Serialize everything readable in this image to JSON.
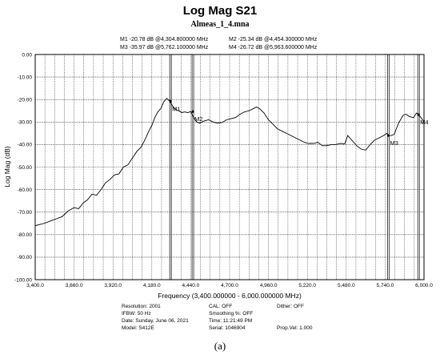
{
  "chart_data": {
    "type": "line",
    "title": "Log Mag S21",
    "subtitle": "Almeas_1_4.mna",
    "xlabel": "Frequency (3,400.000000 - 6,000.000000 MHz)",
    "ylabel": "Log Mag (dB)",
    "xlim": [
      3400,
      6000
    ],
    "ylim": [
      -100,
      0
    ],
    "x_ticks": [
      3400,
      3660,
      3920,
      4180,
      4440,
      4700,
      4960,
      5220,
      5480,
      5740,
      6000
    ],
    "x_tick_labels": [
      "3,400.0",
      "3,660.0",
      "3,920.0",
      "4,180.0",
      "4,440.0",
      "4,700.0",
      "4,960.0",
      "5,220.0",
      "5,480.0",
      "5,740.0",
      "6,000.0"
    ],
    "y_ticks": [
      0,
      -10,
      -20,
      -30,
      -40,
      -50,
      -60,
      -70,
      -80,
      -90,
      -100
    ],
    "y_tick_labels": [
      "0.00",
      "-10.00",
      "-20.00",
      "-30.00",
      "-40.00",
      "-50.00",
      "-60.00",
      "-70.00",
      "-80.00",
      "-90.00",
      "-100.00"
    ],
    "grid": true,
    "series": [
      {
        "name": "S21",
        "x": [
          3400,
          3430,
          3460,
          3500,
          3540,
          3580,
          3620,
          3660,
          3690,
          3720,
          3750,
          3780,
          3810,
          3840,
          3870,
          3900,
          3930,
          3960,
          3990,
          4020,
          4050,
          4080,
          4110,
          4140,
          4160,
          4180,
          4200,
          4220,
          4240,
          4260,
          4280,
          4300,
          4320,
          4340,
          4360,
          4380,
          4400,
          4420,
          4440,
          4460,
          4480,
          4500,
          4530,
          4560,
          4590,
          4620,
          4650,
          4680,
          4710,
          4740,
          4770,
          4800,
          4830,
          4860,
          4880,
          4900,
          4930,
          4960,
          4990,
          5020,
          5050,
          5080,
          5110,
          5140,
          5170,
          5200,
          5230,
          5260,
          5290,
          5320,
          5350,
          5380,
          5410,
          5440,
          5470,
          5490,
          5510,
          5530,
          5550,
          5580,
          5610,
          5640,
          5670,
          5700,
          5730,
          5750,
          5762,
          5780,
          5800,
          5830,
          5860,
          5880,
          5900,
          5930,
          5950,
          5963,
          5980,
          6000
        ],
        "values": [
          -76,
          -75.5,
          -75,
          -74,
          -73,
          -72,
          -69.5,
          -68,
          -68.5,
          -66,
          -64.5,
          -62,
          -62.5,
          -60,
          -57,
          -55.5,
          -53.5,
          -53,
          -50,
          -49,
          -46,
          -43,
          -41,
          -37,
          -34,
          -31.5,
          -28,
          -25.5,
          -24,
          -21,
          -19.5,
          -20.78,
          -23,
          -24.5,
          -25,
          -25.8,
          -25.5,
          -25.8,
          -25.34,
          -28,
          -30,
          -30.5,
          -29.5,
          -29,
          -30,
          -30.5,
          -30.2,
          -29,
          -28.5,
          -28,
          -26.5,
          -25.5,
          -25,
          -24,
          -23.3,
          -24,
          -26,
          -29,
          -31,
          -33,
          -34,
          -35,
          -36,
          -37,
          -38,
          -39,
          -39.5,
          -39.5,
          -39,
          -40.5,
          -40.5,
          -40,
          -40,
          -39.5,
          -39.7,
          -36,
          -37.5,
          -39,
          -40.5,
          -42,
          -42.5,
          -40,
          -38,
          -37,
          -36,
          -35,
          -35.97,
          -36,
          -35.5,
          -30.5,
          -27,
          -26.5,
          -27.5,
          -28,
          -26,
          -26.72,
          -28,
          -30
        ]
      }
    ],
    "markers": [
      {
        "label": "M1",
        "x": 4304.8,
        "y": -20.78,
        "color": "#ff0000",
        "readout": "M1 -20.78 dB @4,304.800000 MHz"
      },
      {
        "label": "M2",
        "x": 4454.3,
        "y": -25.34,
        "color": "#ff7b3a",
        "readout": "M2 -25.34 dB @4,454.300000 MHz"
      },
      {
        "label": "M3",
        "x": 5762.1,
        "y": -35.97,
        "color": "#009900",
        "readout": "M3 -35.97 dB @5,762.100000 MHz"
      },
      {
        "label": "M4",
        "x": 5963.6,
        "y": -26.72,
        "color": "#00c0ff",
        "readout": "M4 -26.72 dB @5,963.600000 MHz"
      }
    ]
  },
  "footer": {
    "resolution": "Resolution: 2001",
    "ifbw": "IFBW: 50 Hz",
    "date": "Date: Sunday, June 06, 2021",
    "model": "Model: S412E",
    "cal": "CAL: OFF",
    "smoothing": "Smoothing %: OFF",
    "time": "Time: 11:21:49 PM",
    "serial": "Serial: 1046904",
    "dither": "Dither: OFF",
    "propvel": "Prop.Vel: 1.000"
  },
  "caption": "(a)"
}
